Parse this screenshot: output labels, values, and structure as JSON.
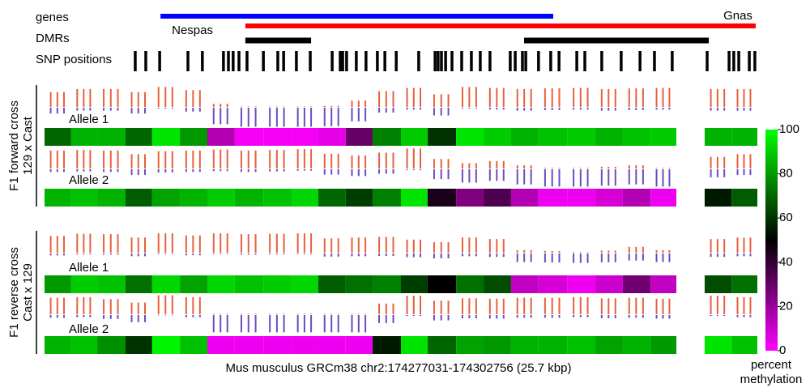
{
  "chart_data": {
    "type": "heatmap",
    "xlabel": "Mus musculus GRCm38 chr2:174277031-174302756 (25.7 kbp)",
    "xlim": [
      0,
      25.7
    ],
    "track_labels": {
      "genes": "genes",
      "dmrs": "DMRs",
      "snps": "SNP positions"
    },
    "genes": [
      {
        "name": "Nespas",
        "color": "#0000ff",
        "start": 4.18,
        "end": 18.34
      },
      {
        "name": "Gnas",
        "color": "#ff0000",
        "start": 7.24,
        "end": 25.64
      }
    ],
    "dmrs": [
      {
        "start": 7.24,
        "end": 9.61
      },
      {
        "start": 17.29,
        "end": 23.95
      }
    ],
    "snps": [
      3.27,
      3.65,
      4.15,
      5.17,
      5.69,
      6.45,
      6.63,
      6.8,
      7.01,
      7.3,
      7.89,
      8.41,
      8.62,
      9.08,
      9.58,
      10.37,
      10.66,
      10.75,
      10.89,
      11.24,
      11.59,
      12.0,
      12.27,
      12.68,
      13.49,
      14.08,
      14.19,
      14.31,
      14.46,
      14.69,
      15.04,
      15.39,
      15.71,
      16.06,
      16.79,
      16.97,
      17.23,
      17.35,
      17.81,
      18.25,
      18.55,
      19.19,
      19.48,
      20.09,
      20.79,
      21.47,
      21.99,
      22.63,
      23.89,
      24.68,
      24.85,
      25.03,
      25.41,
      25.61
    ],
    "bins": [
      0,
      0.96,
      1.9,
      2.92,
      3.88,
      4.88,
      5.87,
      6.86,
      7.89,
      8.91,
      9.87,
      10.86,
      11.83,
      12.85,
      13.81,
      14.84,
      15.83,
      16.82,
      17.81,
      18.84,
      19.86,
      20.85,
      21.85,
      22.78,
      23.8,
      24.77,
      25.7
    ],
    "groups": [
      {
        "label": [
          "F1 forward cross",
          "129 x Cast"
        ],
        "rows": [
          {
            "name": "Allele 1",
            "values": [
              70,
              85,
              85,
              70,
              95,
              80,
              15,
              2,
              2,
              2,
              5,
              30,
              75,
              90,
              60,
              95,
              90,
              85,
              88,
              90,
              85,
              88,
              90,
              null,
              85,
              85
            ]
          },
          {
            "name": "Allele 2",
            "values": [
              85,
              88,
              85,
              68,
              82,
              85,
              90,
              85,
              88,
              92,
              70,
              62,
              75,
              95,
              45,
              25,
              35,
              15,
              3,
              3,
              8,
              15,
              3,
              null,
              55,
              68
            ]
          }
        ]
      },
      {
        "label": [
          "F1 reverse cross",
          "Cast x 129"
        ],
        "rows": [
          {
            "name": "Allele 1",
            "values": [
              80,
              90,
              88,
              72,
              92,
              82,
              92,
              88,
              90,
              92,
              68,
              72,
              75,
              62,
              50,
              72,
              65,
              12,
              8,
              3,
              10,
              28,
              12,
              null,
              65,
              72
            ]
          },
          {
            "name": "Allele 2",
            "values": [
              85,
              88,
              78,
              60,
              98,
              88,
              3,
              3,
              3,
              3,
              3,
              3,
              55,
              95,
              70,
              82,
              80,
              85,
              85,
              88,
              82,
              85,
              80,
              null,
              95,
              88
            ]
          }
        ]
      }
    ],
    "colorbar": {
      "label": [
        "percent",
        "methylation"
      ],
      "lim": [
        0,
        100
      ],
      "ticks": [
        0,
        20,
        40,
        60,
        80,
        100
      ],
      "colors": [
        "#ff00ff",
        "#000000",
        "#00ff00"
      ]
    },
    "bar_colors": {
      "methylated": "#e8603c",
      "unmethylated": "#6a4cc0"
    }
  }
}
